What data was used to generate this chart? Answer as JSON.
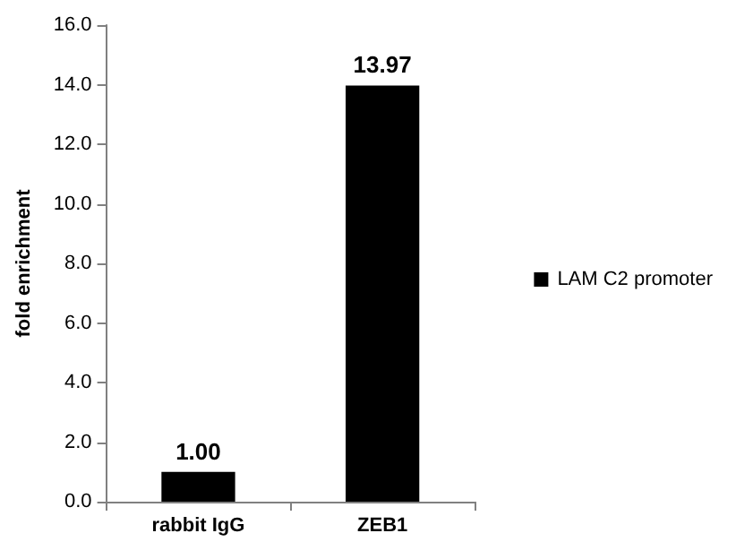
{
  "chart_data": {
    "type": "bar",
    "ylabel": "fold enrichment",
    "categories": [
      "rabbit IgG",
      "ZEB1"
    ],
    "series": [
      {
        "name": "LAM C2 promoter",
        "color": "#000000",
        "values": [
          1.0,
          13.97
        ],
        "value_labels": [
          "1.00",
          "13.97"
        ]
      }
    ],
    "ylim": [
      0,
      16
    ],
    "yticks": [
      {
        "value": 0,
        "label": "0.0"
      },
      {
        "value": 2,
        "label": "2.0"
      },
      {
        "value": 4,
        "label": "4.0"
      },
      {
        "value": 6,
        "label": "6.0"
      },
      {
        "value": 8,
        "label": "8.0"
      },
      {
        "value": 10,
        "label": "10.0"
      },
      {
        "value": 12,
        "label": "12.0"
      },
      {
        "value": 14,
        "label": "14.0"
      },
      {
        "value": 16,
        "label": "16.0"
      }
    ],
    "grid": false,
    "legend": "right"
  }
}
